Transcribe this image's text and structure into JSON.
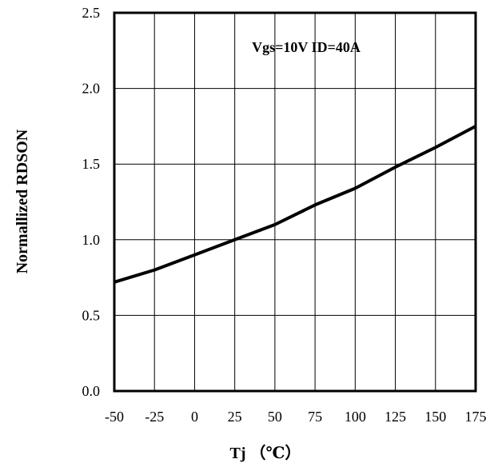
{
  "chart_data": {
    "type": "line",
    "title": "",
    "xlabel": "Tj （℃）",
    "ylabel": "Normallized RDSON",
    "annotation": "Vgs=10V ID=40A",
    "xlim": [
      -50,
      175
    ],
    "ylim": [
      0.0,
      2.5
    ],
    "x_ticks": [
      -50,
      -25,
      0,
      25,
      50,
      75,
      100,
      125,
      150,
      175
    ],
    "x_tick_labels": [
      "-50",
      "-25",
      "0",
      "25",
      "50",
      "75",
      "100",
      "125",
      "150",
      "175"
    ],
    "y_ticks": [
      0.0,
      0.5,
      1.0,
      1.5,
      2.0,
      2.5
    ],
    "y_tick_labels": [
      "0.0",
      "0.5",
      "1.0",
      "1.5",
      "2.0",
      "2.5"
    ],
    "grid": true,
    "series": [
      {
        "x": [
          -50,
          -25,
          0,
          25,
          50,
          75,
          100,
          125,
          150,
          175
        ],
        "values": [
          0.72,
          0.8,
          0.9,
          1.0,
          1.1,
          1.23,
          1.34,
          1.48,
          1.61,
          1.75
        ],
        "color": "#000000"
      }
    ]
  }
}
